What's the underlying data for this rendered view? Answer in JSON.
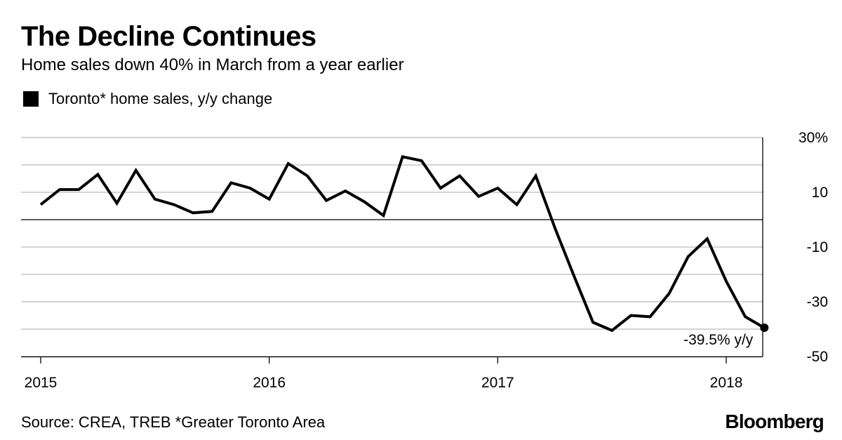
{
  "header": {
    "title": "The Decline Continues",
    "subtitle": "Home sales down 40% in March from a year earlier"
  },
  "legend": {
    "label": "Toronto* home sales, y/y change",
    "color": "#000000"
  },
  "chart_data": {
    "type": "line",
    "title": "The Decline Continues",
    "subtitle": "Home sales down 40% in March from a year earlier",
    "x": [
      "2015-01",
      "2015-02",
      "2015-03",
      "2015-04",
      "2015-05",
      "2015-06",
      "2015-07",
      "2015-08",
      "2015-09",
      "2015-10",
      "2015-11",
      "2015-12",
      "2016-01",
      "2016-02",
      "2016-03",
      "2016-04",
      "2016-05",
      "2016-06",
      "2016-07",
      "2016-08",
      "2016-09",
      "2016-10",
      "2016-11",
      "2016-12",
      "2017-01",
      "2017-02",
      "2017-03",
      "2017-04",
      "2017-05",
      "2017-06",
      "2017-07",
      "2017-08",
      "2017-09",
      "2017-10",
      "2017-11",
      "2017-12",
      "2018-01",
      "2018-02",
      "2018-03"
    ],
    "series": [
      {
        "name": "Toronto* home sales, y/y change",
        "color": "#000000",
        "values": [
          5.5,
          11,
          11,
          16.5,
          6,
          18,
          7.5,
          5.5,
          2.5,
          3,
          13.5,
          11.5,
          7.5,
          20.5,
          16,
          7,
          10.5,
          6.5,
          1.5,
          23,
          21.5,
          11.5,
          16,
          8.5,
          11.5,
          5.5,
          16,
          -3,
          -20.5,
          -37.5,
          -40.5,
          -35,
          -35.5,
          -27,
          -13.5,
          -7,
          -22.5,
          -35.5,
          -39.5
        ]
      }
    ],
    "x_ticks": [
      "2015",
      "2016",
      "2017",
      "2018"
    ],
    "y_tick_labels": [
      "30%",
      "10",
      "-10",
      "-30",
      "-50"
    ],
    "y_tick_values": [
      30,
      10,
      -10,
      -30,
      -50
    ],
    "ylim": [
      -50,
      30
    ],
    "grid": true,
    "zero_line": true,
    "annotation": {
      "text": "-39.5% y/y",
      "x": "2018-03",
      "y": -39.5
    },
    "legend_position": "top-left"
  },
  "footer": {
    "source": "Source: CREA, TREB *Greater Toronto Area",
    "logo": "Bloomberg"
  }
}
